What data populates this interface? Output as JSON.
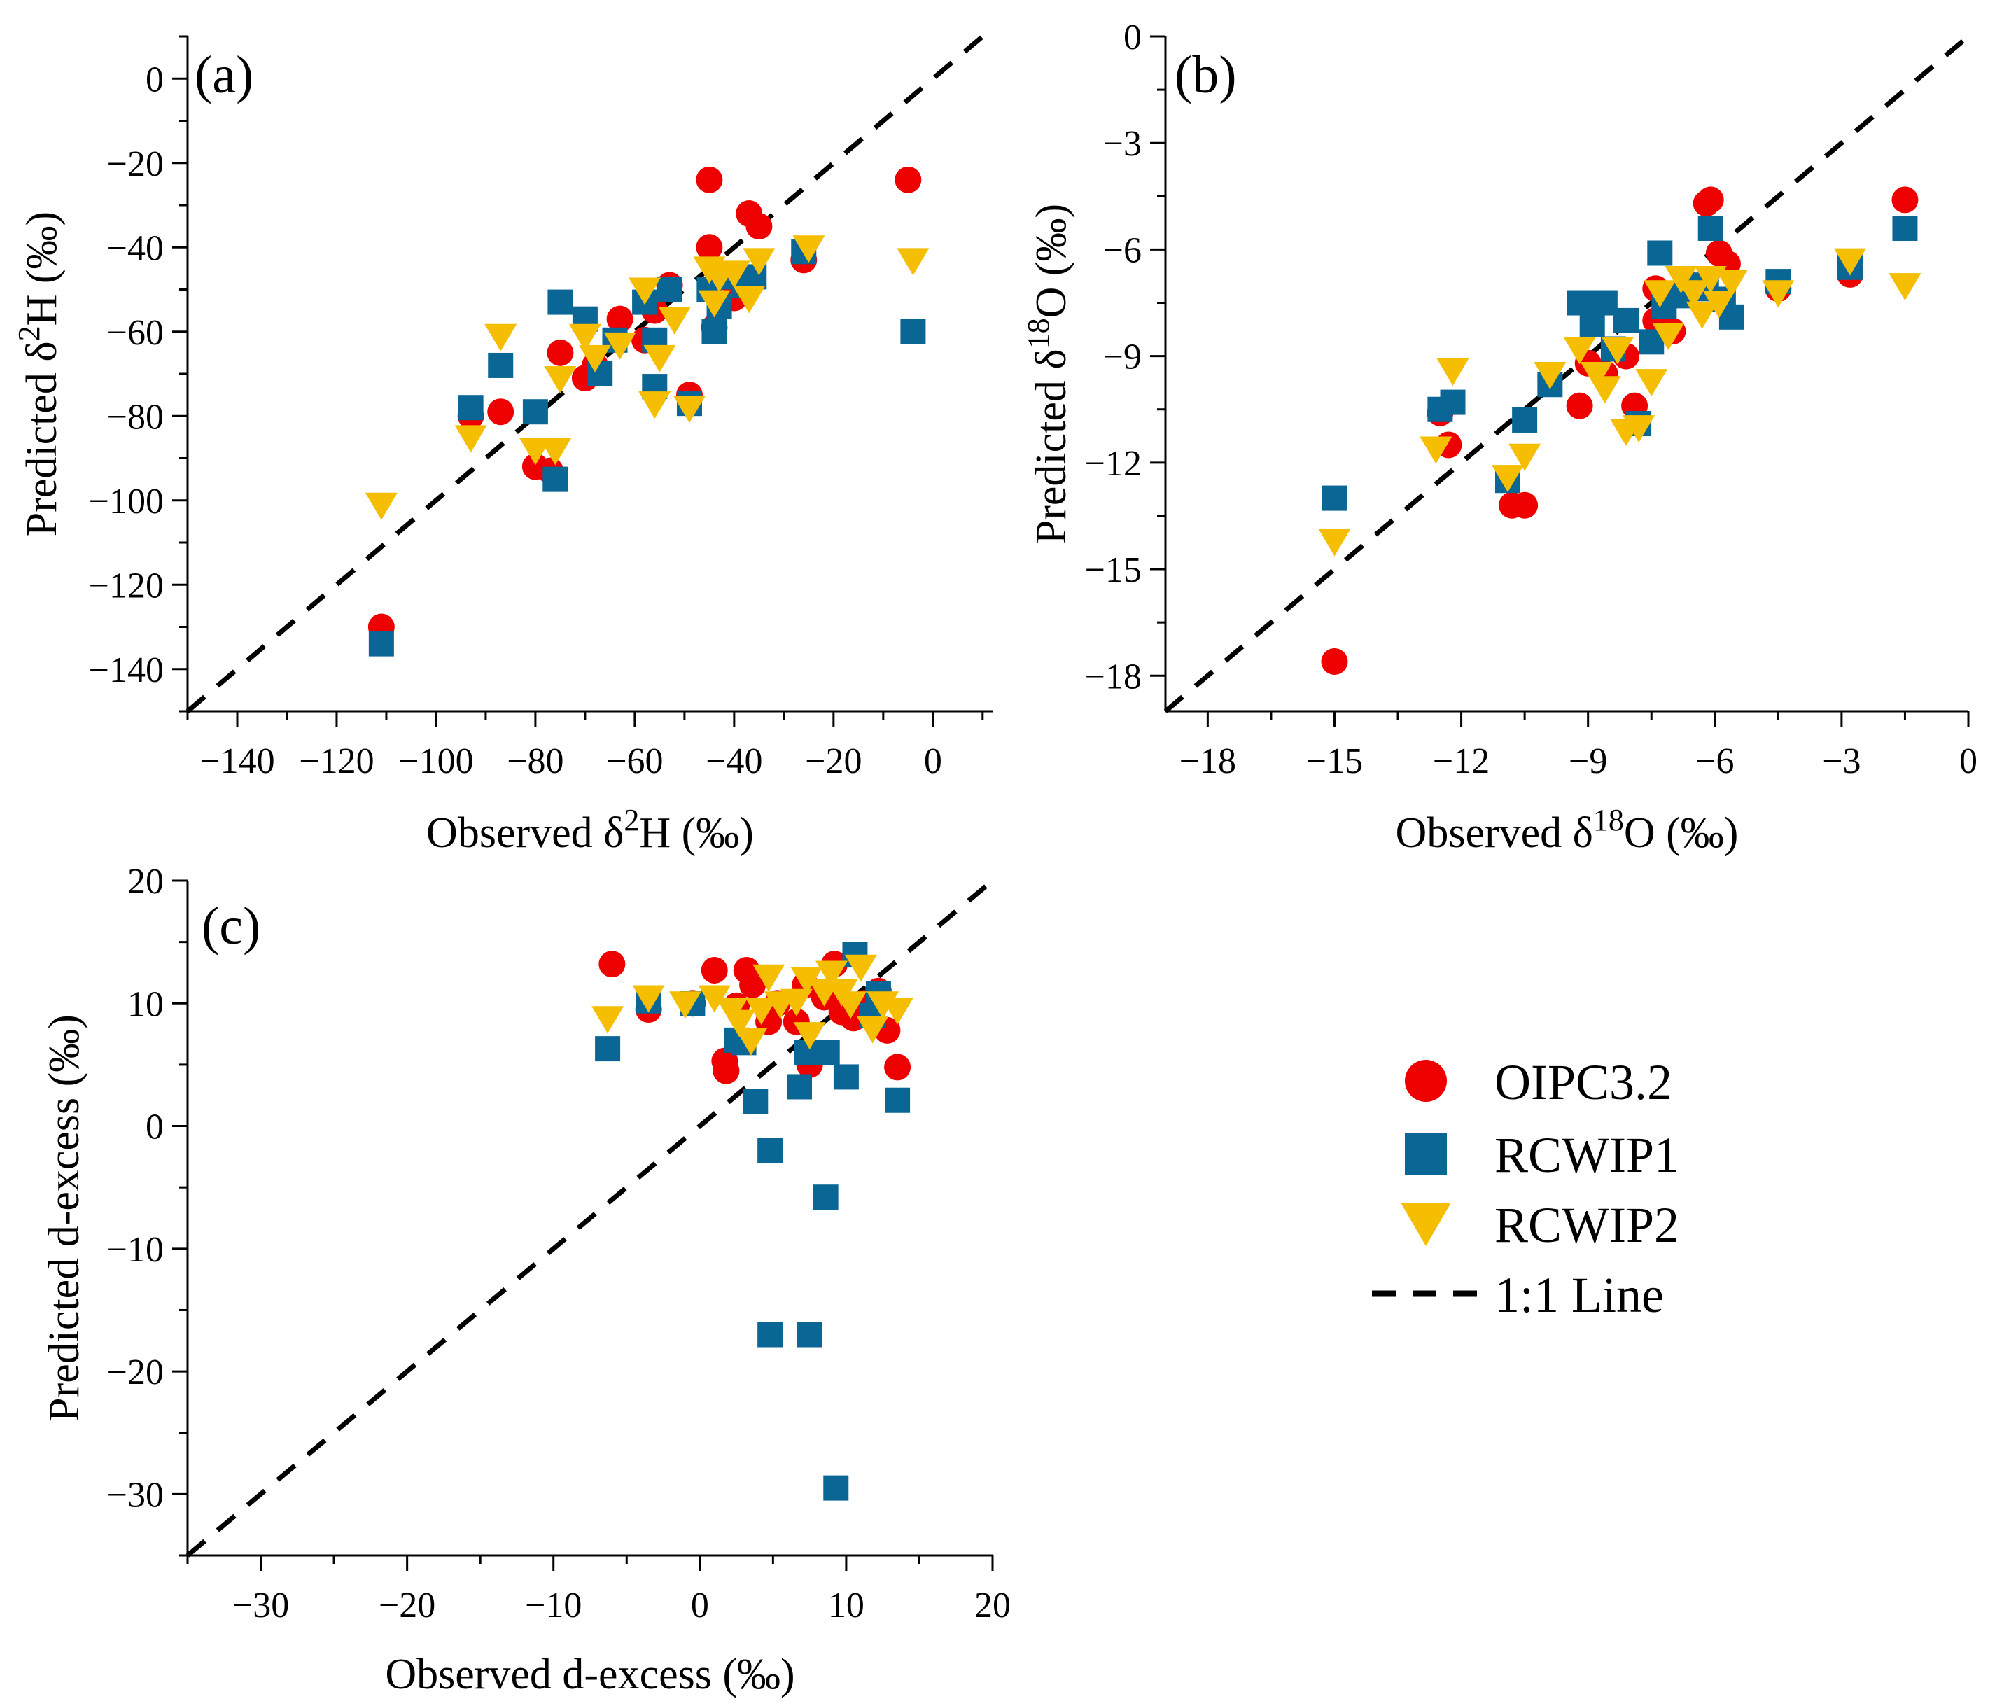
{
  "figure": {
    "background": "#ffffff"
  },
  "series_styles": {
    "OIPC3.2": {
      "marker": "circle",
      "color": "#ee0000"
    },
    "RCWIP1": {
      "marker": "square",
      "color": "#0a6694"
    },
    "RCWIP2": {
      "marker": "triangle-down",
      "color": "#f5be00"
    }
  },
  "legend": {
    "placement": "right, below panel (b)",
    "items": [
      {
        "label": "OIPC3.2",
        "marker": "circle"
      },
      {
        "label": "RCWIP1",
        "marker": "square"
      },
      {
        "label": "RCWIP2",
        "marker": "triangle-down"
      },
      {
        "label": "1:1 Line",
        "marker": "dashed-line"
      }
    ]
  },
  "chart_data": [
    {
      "panel": "(a)",
      "type": "scatter",
      "xlabel": {
        "prefix": "Observed  δ",
        "sup": "2",
        "suffix": "H (‰)"
      },
      "ylabel": {
        "prefix": "Predicted  δ",
        "sup": "2",
        "suffix": "H (‰)"
      },
      "xlim": [
        -150,
        12
      ],
      "ylim": [
        -150,
        10
      ],
      "xticks": [
        -140,
        -120,
        -100,
        -80,
        -60,
        -40,
        -20,
        0
      ],
      "yticks": [
        -140,
        -120,
        -100,
        -80,
        -60,
        -40,
        -20,
        0
      ],
      "one_to_one_line": true,
      "series": [
        {
          "name": "OIPC3.2",
          "points": [
            [
              -111,
              -130
            ],
            [
              -93,
              -80
            ],
            [
              -87,
              -79
            ],
            [
              -80,
              -92
            ],
            [
              -77,
              -93
            ],
            [
              -75,
              -65
            ],
            [
              -70,
              -71
            ],
            [
              -68,
              -68
            ],
            [
              -63,
              -57
            ],
            [
              -58,
              -62
            ],
            [
              -56,
              -55
            ],
            [
              -53,
              -49
            ],
            [
              -49,
              -75
            ],
            [
              -45,
              -24
            ],
            [
              -45,
              -40
            ],
            [
              -44,
              -59
            ],
            [
              -42,
              -47
            ],
            [
              -40,
              -52
            ],
            [
              -37,
              -32
            ],
            [
              -35,
              -35
            ],
            [
              -26,
              -43
            ],
            [
              -5,
              -24
            ]
          ]
        },
        {
          "name": "RCWIP1",
          "points": [
            [
              -111,
              -134
            ],
            [
              -93,
              -78
            ],
            [
              -87,
              -68
            ],
            [
              -80,
              -79
            ],
            [
              -76,
              -95
            ],
            [
              -75,
              -53
            ],
            [
              -70,
              -57
            ],
            [
              -67,
              -70
            ],
            [
              -64,
              -62
            ],
            [
              -58,
              -53
            ],
            [
              -56,
              -62
            ],
            [
              -56,
              -73
            ],
            [
              -53,
              -50
            ],
            [
              -49,
              -77
            ],
            [
              -45,
              -50
            ],
            [
              -44,
              -60
            ],
            [
              -43,
              -54
            ],
            [
              -41,
              -47
            ],
            [
              -38,
              -49
            ],
            [
              -36,
              -47
            ],
            [
              -26,
              -41
            ],
            [
              -4,
              -60
            ]
          ]
        },
        {
          "name": "RCWIP2",
          "points": [
            [
              -111,
              -101
            ],
            [
              -93,
              -85
            ],
            [
              -87,
              -61
            ],
            [
              -80,
              -88
            ],
            [
              -76,
              -88
            ],
            [
              -75,
              -71
            ],
            [
              -70,
              -61
            ],
            [
              -68,
              -66
            ],
            [
              -63,
              -63
            ],
            [
              -58,
              -50
            ],
            [
              -56,
              -77
            ],
            [
              -55,
              -66
            ],
            [
              -52,
              -57
            ],
            [
              -49,
              -78
            ],
            [
              -45,
              -45
            ],
            [
              -44,
              -53
            ],
            [
              -43,
              -47
            ],
            [
              -40,
              -46
            ],
            [
              -37,
              -52
            ],
            [
              -35,
              -43
            ],
            [
              -25,
              -40
            ],
            [
              -4,
              -43
            ]
          ]
        }
      ]
    },
    {
      "panel": "(b)",
      "type": "scatter",
      "xlabel": {
        "prefix": "Observed  δ",
        "sup": "18",
        "suffix": "O (‰)"
      },
      "ylabel": {
        "prefix": "Predicted  δ",
        "sup": "18",
        "suffix": "O (‰)"
      },
      "xlim": [
        -19,
        0
      ],
      "ylim": [
        -19,
        0
      ],
      "xticks": [
        -18,
        -15,
        -12,
        -9,
        -6,
        -3,
        0
      ],
      "yticks": [
        -18,
        -15,
        -12,
        -9,
        -6,
        -3,
        0
      ],
      "one_to_one_line": true,
      "series": [
        {
          "name": "OIPC3.2",
          "points": [
            [
              -15,
              -17.6
            ],
            [
              -12.5,
              -10.6
            ],
            [
              -12.3,
              -11.5
            ],
            [
              -10.8,
              -13.2
            ],
            [
              -10.5,
              -13.2
            ],
            [
              -9.2,
              -10.4
            ],
            [
              -9.0,
              -9.2
            ],
            [
              -8.6,
              -9.5
            ],
            [
              -8.1,
              -9.0
            ],
            [
              -7.9,
              -10.4
            ],
            [
              -7.4,
              -8.0
            ],
            [
              -7.4,
              -7.1
            ],
            [
              -7.0,
              -8.3
            ],
            [
              -6.8,
              -7.2
            ],
            [
              -6.2,
              -4.7
            ],
            [
              -6.1,
              -4.6
            ],
            [
              -5.9,
              -6.1
            ],
            [
              -5.7,
              -6.4
            ],
            [
              -4.5,
              -7.1
            ],
            [
              -2.8,
              -6.7
            ],
            [
              -1.5,
              -4.6
            ]
          ]
        },
        {
          "name": "RCWIP1",
          "points": [
            [
              -15,
              -13.0
            ],
            [
              -12.5,
              -10.5
            ],
            [
              -12.2,
              -10.3
            ],
            [
              -10.9,
              -12.5
            ],
            [
              -10.5,
              -10.8
            ],
            [
              -9.9,
              -9.8
            ],
            [
              -9.2,
              -7.5
            ],
            [
              -8.9,
              -8.1
            ],
            [
              -8.6,
              -7.5
            ],
            [
              -8.4,
              -8.8
            ],
            [
              -8.1,
              -8.0
            ],
            [
              -7.8,
              -10.9
            ],
            [
              -7.5,
              -8.6
            ],
            [
              -7.3,
              -6.1
            ],
            [
              -7.2,
              -7.6
            ],
            [
              -6.8,
              -7.3
            ],
            [
              -6.5,
              -7.0
            ],
            [
              -6.2,
              -7.1
            ],
            [
              -6.1,
              -5.4
            ],
            [
              -5.8,
              -7.4
            ],
            [
              -5.6,
              -7.9
            ],
            [
              -4.5,
              -6.9
            ],
            [
              -2.8,
              -6.5
            ],
            [
              -1.5,
              -5.4
            ]
          ]
        },
        {
          "name": "RCWIP2",
          "points": [
            [
              -15,
              -14.2
            ],
            [
              -12.6,
              -11.6
            ],
            [
              -12.2,
              -9.4
            ],
            [
              -10.9,
              -12.4
            ],
            [
              -10.5,
              -11.8
            ],
            [
              -9.9,
              -9.5
            ],
            [
              -9.2,
              -8.8
            ],
            [
              -8.8,
              -9.5
            ],
            [
              -8.6,
              -9.9
            ],
            [
              -8.3,
              -8.8
            ],
            [
              -8.1,
              -11.1
            ],
            [
              -7.8,
              -11.0
            ],
            [
              -7.5,
              -9.7
            ],
            [
              -7.3,
              -7.2
            ],
            [
              -7.1,
              -8.4
            ],
            [
              -6.8,
              -6.8
            ],
            [
              -6.5,
              -7.2
            ],
            [
              -6.3,
              -7.8
            ],
            [
              -6.1,
              -6.8
            ],
            [
              -5.9,
              -7.5
            ],
            [
              -5.6,
              -6.9
            ],
            [
              -4.5,
              -7.2
            ],
            [
              -2.8,
              -6.3
            ],
            [
              -1.5,
              -7.0
            ]
          ]
        }
      ]
    },
    {
      "panel": "(c)",
      "type": "scatter",
      "xlabel": {
        "prefix": "Observed  d-excess (‰)",
        "sup": "",
        "suffix": ""
      },
      "ylabel": {
        "prefix": "Predicted  d-excess (‰)",
        "sup": "",
        "suffix": ""
      },
      "xlim": [
        -35,
        20
      ],
      "ylim": [
        -35,
        20
      ],
      "xticks": [
        -30,
        -20,
        -10,
        0,
        10,
        20
      ],
      "yticks": [
        -30,
        -20,
        -10,
        0,
        10,
        20
      ],
      "one_to_one_line": true,
      "series": [
        {
          "name": "OIPC3.2",
          "points": [
            [
              -6,
              13.2
            ],
            [
              -3.5,
              9.5
            ],
            [
              -0.5,
              10.0
            ],
            [
              1,
              12.7
            ],
            [
              1.7,
              5.3
            ],
            [
              1.8,
              4.5
            ],
            [
              2.5,
              9.8
            ],
            [
              3.2,
              12.7
            ],
            [
              3.6,
              11.5
            ],
            [
              4.7,
              8.5
            ],
            [
              5.3,
              10.0
            ],
            [
              6.6,
              8.5
            ],
            [
              7.2,
              11.5
            ],
            [
              7.5,
              5.0
            ],
            [
              8.5,
              10.5
            ],
            [
              9.2,
              13.2
            ],
            [
              9.7,
              9.3
            ],
            [
              10.5,
              8.8
            ],
            [
              11.2,
              10.0
            ],
            [
              12.2,
              11.0
            ],
            [
              12.8,
              7.8
            ],
            [
              13.5,
              4.8
            ]
          ]
        },
        {
          "name": "RCWIP1",
          "points": [
            [
              -6.3,
              6.3
            ],
            [
              -3.5,
              10.2
            ],
            [
              -0.5,
              10.0
            ],
            [
              2.5,
              7.0
            ],
            [
              3.0,
              6.8
            ],
            [
              3.8,
              2.0
            ],
            [
              4.8,
              -2.0
            ],
            [
              4.8,
              -17.0
            ],
            [
              6.8,
              3.2
            ],
            [
              7.5,
              -17.0
            ],
            [
              7.3,
              6.0
            ],
            [
              8.6,
              -5.8
            ],
            [
              8.7,
              6.0
            ],
            [
              9.3,
              -29.5
            ],
            [
              10.0,
              4.0
            ],
            [
              10.6,
              14.0
            ],
            [
              11.8,
              9.0
            ],
            [
              12.2,
              10.8
            ],
            [
              13.5,
              2.1
            ]
          ]
        },
        {
          "name": "RCWIP2",
          "points": [
            [
              -6.3,
              8.8
            ],
            [
              -3.5,
              10.5
            ],
            [
              -1.0,
              10.0
            ],
            [
              1.0,
              10.5
            ],
            [
              2.2,
              9.5
            ],
            [
              2.7,
              8.5
            ],
            [
              3.5,
              7.0
            ],
            [
              4.2,
              9.5
            ],
            [
              4.7,
              12.2
            ],
            [
              5.5,
              10.0
            ],
            [
              6.6,
              10.2
            ],
            [
              7.3,
              12.0
            ],
            [
              7.5,
              7.5
            ],
            [
              8.5,
              11.0
            ],
            [
              9.0,
              12.5
            ],
            [
              9.7,
              11.0
            ],
            [
              10.3,
              10.0
            ],
            [
              11.0,
              13.0
            ],
            [
              11.8,
              8.0
            ],
            [
              12.5,
              10.0
            ],
            [
              13.5,
              9.5
            ]
          ]
        }
      ]
    }
  ]
}
